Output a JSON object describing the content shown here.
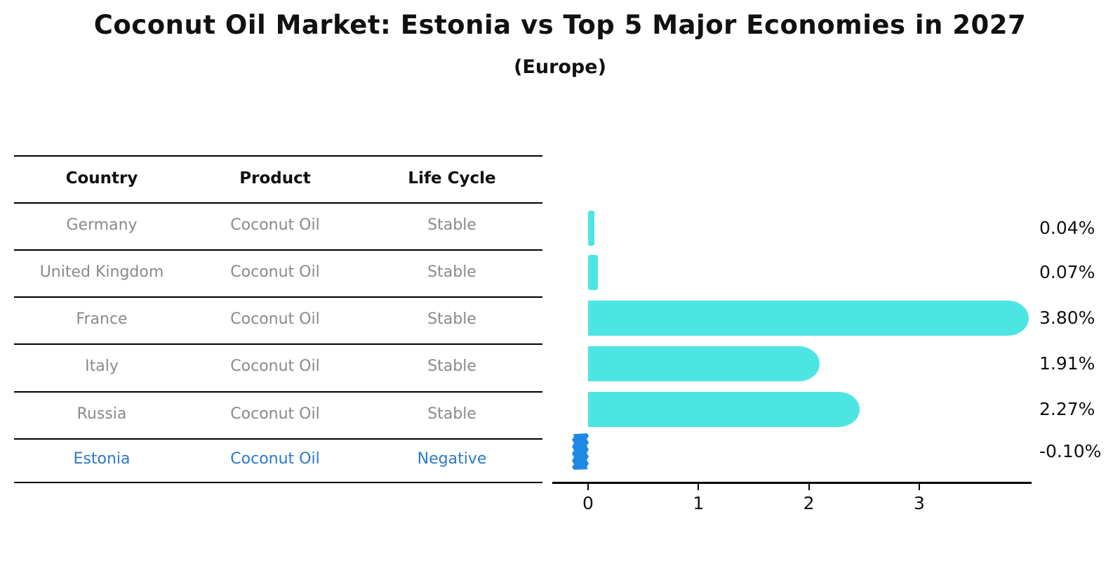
{
  "title": "Coconut Oil Market: Estonia vs Top 5 Major Economies in 2027",
  "subtitle": "(Europe)",
  "table": {
    "columns": [
      "Country",
      "Product",
      "Life Cycle"
    ],
    "rows": [
      {
        "country": "Germany",
        "product": "Coconut Oil",
        "life_cycle": "Stable",
        "highlight": false
      },
      {
        "country": "United Kingdom",
        "product": "Coconut Oil",
        "life_cycle": "Stable",
        "highlight": false
      },
      {
        "country": "France",
        "product": "Coconut Oil",
        "life_cycle": "Stable",
        "highlight": false
      },
      {
        "country": "Italy",
        "product": "Coconut Oil",
        "life_cycle": "Stable",
        "highlight": false
      },
      {
        "country": "Russia",
        "product": "Coconut Oil",
        "life_cycle": "Stable",
        "highlight": false
      },
      {
        "country": "Estonia",
        "product": "Coconut Oil",
        "life_cycle": "Negative",
        "highlight": true
      }
    ]
  },
  "chart_data": {
    "type": "bar",
    "orientation": "horizontal",
    "categories": [
      "Germany",
      "United Kingdom",
      "France",
      "Italy",
      "Russia",
      "Estonia"
    ],
    "values": [
      0.04,
      0.07,
      3.8,
      1.91,
      2.27,
      -0.1
    ],
    "value_labels": [
      "0.04%",
      "0.07%",
      "3.80%",
      "1.91%",
      "2.27%",
      "-0.10%"
    ],
    "x_ticks": [
      0,
      1,
      2,
      3
    ],
    "xlim": [
      -0.33,
      4.02
    ],
    "grid": false,
    "legend": "none",
    "highlight_index": 5
  },
  "colors": {
    "bar": "#4de5e3",
    "highlight_bar": "#1e88e5",
    "highlight_text": "#2979c9",
    "row_text": "#8a8a8a",
    "heading_text": "#111111",
    "line": "#000000"
  }
}
